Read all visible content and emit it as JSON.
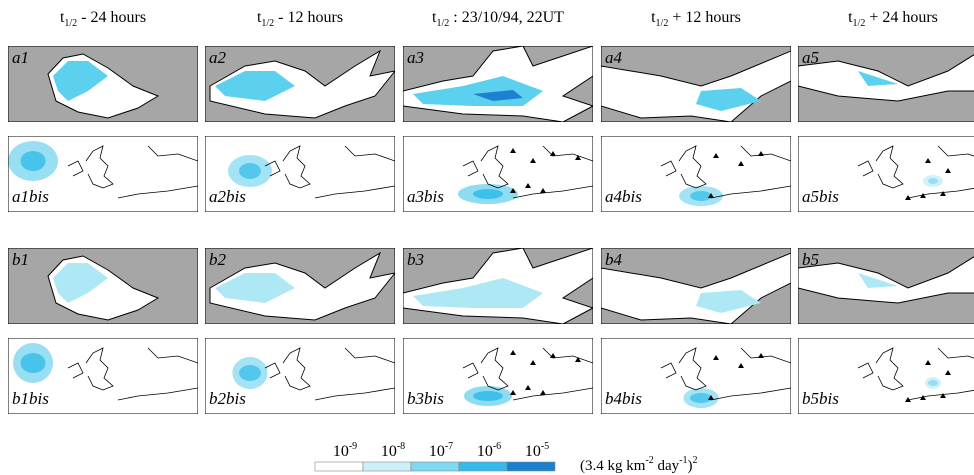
{
  "headers": [
    {
      "symbol": "t",
      "subscript": "1/2",
      "text": " - 24 hours"
    },
    {
      "symbol": "t",
      "subscript": "1/2",
      "text": " - 12 hours"
    },
    {
      "symbol": "t",
      "subscript": "1/2",
      "text": " : 23/10/94, 22UT"
    },
    {
      "symbol": "t",
      "subscript": "1/2",
      "text": " + 12 hours"
    },
    {
      "symbol": "t",
      "subscript": "1/2",
      "text": " + 24 hours"
    }
  ],
  "rows": [
    [
      "a1",
      "a2",
      "a3",
      "a4",
      "a5"
    ],
    [
      "a1bis",
      "a2bis",
      "a3bis",
      "a4bis",
      "a5bis"
    ],
    [
      "b1",
      "b2",
      "b3",
      "b4",
      "b5"
    ],
    [
      "b1bis",
      "b2bis",
      "b3bis",
      "b4bis",
      "b5bis"
    ]
  ],
  "colorbar": {
    "ticks": [
      {
        "base": "10",
        "exponent": "-9"
      },
      {
        "base": "10",
        "exponent": "-8"
      },
      {
        "base": "10",
        "exponent": "-7"
      },
      {
        "base": "10",
        "exponent": "-6"
      },
      {
        "base": "10",
        "exponent": "-5"
      }
    ],
    "unit": [
      {
        "text": "(3.4 kg km"
      },
      {
        "sup": "-2"
      },
      {
        "text": "  day"
      },
      {
        "sup": "-1"
      },
      {
        "text": ")"
      },
      {
        "sup": "2"
      }
    ]
  }
}
